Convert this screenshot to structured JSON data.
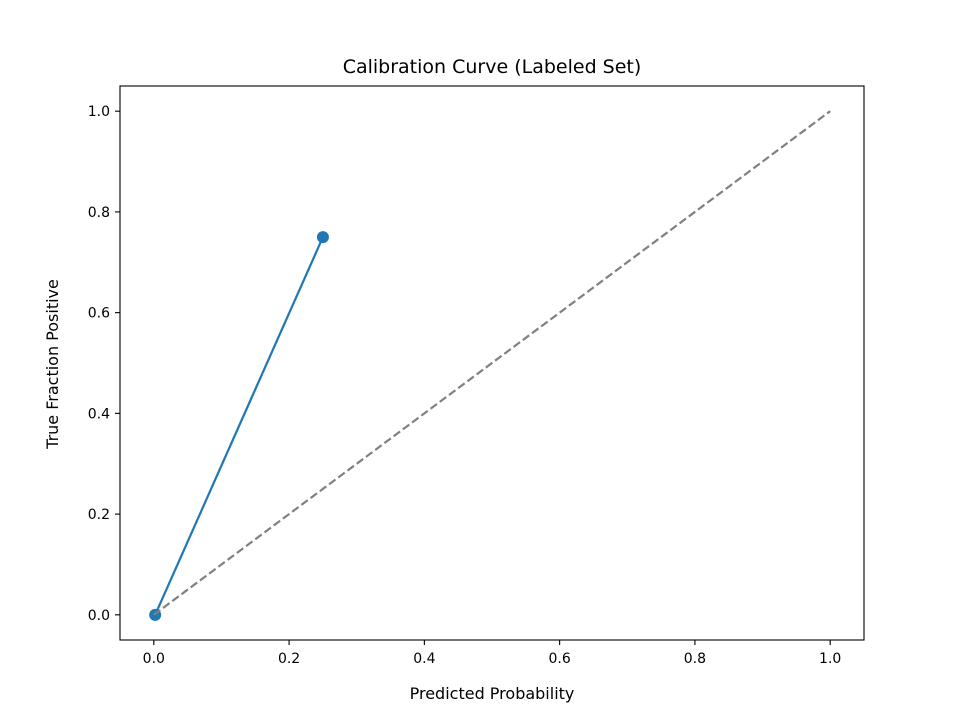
{
  "chart_data": {
    "type": "line",
    "title": "Calibration Curve (Labeled Set)",
    "xlabel": "Predicted Probability",
    "ylabel": "True Fraction Positive",
    "xlim": [
      -0.05,
      1.05
    ],
    "ylim": [
      -0.05,
      1.05
    ],
    "xticks": [
      0.0,
      0.2,
      0.4,
      0.6,
      0.8,
      1.0
    ],
    "xtick_labels": [
      "0.0",
      "0.2",
      "0.4",
      "0.6",
      "0.8",
      "1.0"
    ],
    "yticks": [
      0.0,
      0.2,
      0.4,
      0.6,
      0.8,
      1.0
    ],
    "ytick_labels": [
      "0.0",
      "0.2",
      "0.4",
      "0.6",
      "0.8",
      "1.0"
    ],
    "grid": false,
    "legend": "none",
    "series": [
      {
        "style": "line-with-circle-markers",
        "color": "#1f77b4",
        "x": [
          0.002,
          0.25
        ],
        "y": [
          0.0,
          0.75
        ]
      },
      {
        "style": "dashed",
        "color": "#808080",
        "x": [
          0.0,
          1.0
        ],
        "y": [
          0.0,
          1.0
        ]
      }
    ]
  }
}
